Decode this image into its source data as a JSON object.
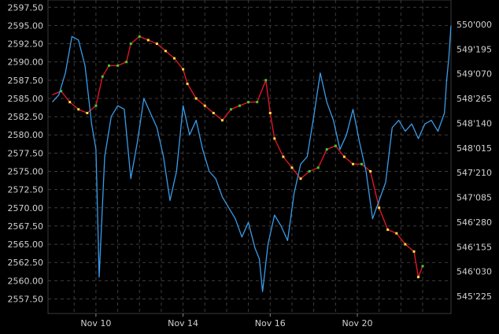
{
  "chart_data": {
    "type": "line",
    "grid": true,
    "background": "#000000",
    "left_axis": {
      "ticks": [
        "2597.50",
        "2595.00",
        "2592.50",
        "2590.00",
        "2587.50",
        "2585.00",
        "2582.50",
        "2580.00",
        "2577.50",
        "2575.00",
        "2572.50",
        "2570.00",
        "2567.50",
        "2565.00",
        "2562.50",
        "2560.00",
        "2557.50"
      ],
      "range": [
        2555.5,
        2598.5
      ]
    },
    "right_axis": {
      "ticks": [
        "550'000",
        "549'195",
        "549'070",
        "548'265",
        "548'140",
        "548'015",
        "547'210",
        "547'085",
        "546'280",
        "546'155",
        "546'030",
        "545'225"
      ]
    },
    "x_ticks": [
      {
        "label": "Nov 10",
        "x": 8
      },
      {
        "label": "Nov 14",
        "x": 12
      },
      {
        "label": "Nov 16",
        "x": 16
      },
      {
        "label": "Nov 20",
        "x": 20
      }
    ],
    "x_range": [
      5.8,
      24.3
    ],
    "series": [
      {
        "kind": "candles",
        "color": "#e0142a",
        "points": [
          [
            6.0,
            2585.5
          ],
          [
            6.4,
            2586.0
          ],
          [
            6.8,
            2584.5
          ],
          [
            7.2,
            2583.5
          ],
          [
            7.6,
            2583.0
          ],
          [
            8.0,
            2584.0
          ],
          [
            8.3,
            2588.0
          ],
          [
            8.6,
            2589.5
          ],
          [
            9.0,
            2589.5
          ],
          [
            9.4,
            2590.0
          ],
          [
            9.6,
            2592.5
          ],
          [
            10.0,
            2593.5
          ],
          [
            10.4,
            2593.0
          ],
          [
            10.8,
            2592.5
          ],
          [
            11.2,
            2591.5
          ],
          [
            11.6,
            2590.5
          ],
          [
            12.0,
            2589.0
          ],
          [
            12.2,
            2587.0
          ],
          [
            12.6,
            2585.0
          ],
          [
            13.0,
            2584.0
          ],
          [
            13.4,
            2583.0
          ],
          [
            13.8,
            2582.0
          ],
          [
            14.2,
            2583.5
          ],
          [
            14.6,
            2584.0
          ],
          [
            15.0,
            2584.5
          ],
          [
            15.4,
            2584.5
          ],
          [
            15.8,
            2587.5
          ],
          [
            16.0,
            2583.0
          ],
          [
            16.2,
            2579.5
          ],
          [
            16.6,
            2577.0
          ],
          [
            17.0,
            2575.5
          ],
          [
            17.4,
            2574.0
          ],
          [
            17.8,
            2575.0
          ],
          [
            18.2,
            2575.5
          ],
          [
            18.6,
            2578.0
          ],
          [
            19.0,
            2578.5
          ],
          [
            19.4,
            2577.0
          ],
          [
            19.8,
            2576.0
          ],
          [
            20.2,
            2576.0
          ],
          [
            20.6,
            2575.0
          ],
          [
            21.0,
            2570.0
          ],
          [
            21.4,
            2567.0
          ],
          [
            21.8,
            2566.5
          ],
          [
            22.2,
            2565.0
          ],
          [
            22.6,
            2564.0
          ],
          [
            22.8,
            2560.5
          ],
          [
            23.0,
            2562.0
          ]
        ]
      },
      {
        "kind": "line",
        "color": "#3a9be8",
        "points": [
          [
            6.0,
            2584.5
          ],
          [
            6.3,
            2585.5
          ],
          [
            6.6,
            2588.5
          ],
          [
            6.9,
            2593.5
          ],
          [
            7.2,
            2593.0
          ],
          [
            7.5,
            2589.5
          ],
          [
            7.8,
            2581.5
          ],
          [
            8.0,
            2578.0
          ],
          [
            8.15,
            2560.5
          ],
          [
            8.4,
            2577.0
          ],
          [
            8.7,
            2582.5
          ],
          [
            9.0,
            2584.0
          ],
          [
            9.3,
            2583.5
          ],
          [
            9.6,
            2574.0
          ],
          [
            9.9,
            2579.0
          ],
          [
            10.2,
            2585.0
          ],
          [
            10.5,
            2583.0
          ],
          [
            10.8,
            2581.0
          ],
          [
            11.1,
            2577.0
          ],
          [
            11.4,
            2571.0
          ],
          [
            11.7,
            2575.0
          ],
          [
            12.0,
            2584.0
          ],
          [
            12.3,
            2580.0
          ],
          [
            12.6,
            2582.0
          ],
          [
            12.9,
            2578.0
          ],
          [
            13.2,
            2575.0
          ],
          [
            13.5,
            2574.0
          ],
          [
            13.8,
            2571.5
          ],
          [
            14.1,
            2570.0
          ],
          [
            14.4,
            2568.5
          ],
          [
            14.7,
            2566.0
          ],
          [
            15.0,
            2568.0
          ],
          [
            15.3,
            2564.5
          ],
          [
            15.5,
            2563.0
          ],
          [
            15.65,
            2558.5
          ],
          [
            15.9,
            2565.0
          ],
          [
            16.2,
            2569.0
          ],
          [
            16.5,
            2567.5
          ],
          [
            16.8,
            2565.5
          ],
          [
            17.1,
            2572.0
          ],
          [
            17.4,
            2576.0
          ],
          [
            17.7,
            2577.0
          ],
          [
            18.0,
            2582.5
          ],
          [
            18.3,
            2588.5
          ],
          [
            18.6,
            2584.5
          ],
          [
            18.9,
            2582.0
          ],
          [
            19.2,
            2578.0
          ],
          [
            19.5,
            2580.0
          ],
          [
            19.8,
            2583.5
          ],
          [
            20.1,
            2579.0
          ],
          [
            20.4,
            2575.0
          ],
          [
            20.7,
            2568.5
          ],
          [
            21.0,
            2571.0
          ],
          [
            21.3,
            2573.5
          ],
          [
            21.6,
            2581.0
          ],
          [
            21.9,
            2582.0
          ],
          [
            22.2,
            2580.5
          ],
          [
            22.5,
            2581.5
          ],
          [
            22.8,
            2579.5
          ],
          [
            23.1,
            2581.5
          ],
          [
            23.4,
            2582.0
          ],
          [
            23.7,
            2580.5
          ],
          [
            24.0,
            2583.0
          ],
          [
            24.1,
            2587.5
          ],
          [
            24.2,
            2590.5
          ],
          [
            24.3,
            2595.0
          ]
        ]
      }
    ]
  }
}
